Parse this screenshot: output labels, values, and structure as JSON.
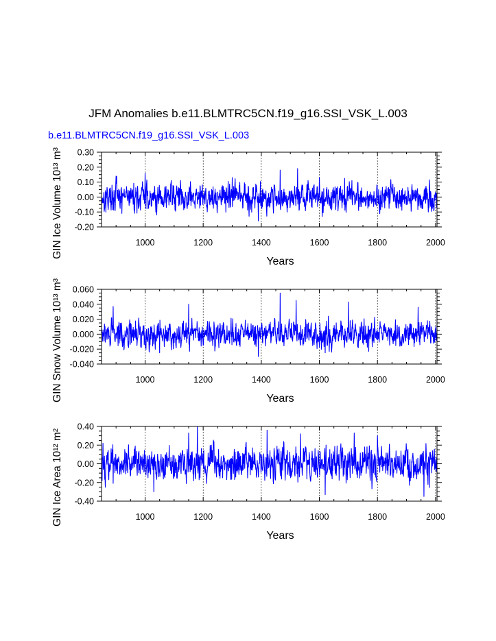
{
  "figure": {
    "title": "JFM Anomalies b.e11.BLMTRC5CN.f19_g16.SSI_VSK_L.003",
    "run_label": "b.e11.BLMTRC5CN.f19_g16.SSI_VSK_L.003",
    "line_color": "#0000ff"
  },
  "chart_data": [
    {
      "type": "line",
      "title": "",
      "xlabel": "Years",
      "ylabel": "GIN Ice Volume 10¹³ m³",
      "xlim": [
        850,
        2005
      ],
      "ylim": [
        -0.2,
        0.3
      ],
      "x_ticks": [
        1000,
        1200,
        1400,
        1600,
        1800,
        2000
      ],
      "y_ticks": [
        -0.2,
        -0.1,
        0.0,
        0.1,
        0.2,
        0.3
      ],
      "y_tick_labels": [
        "-0.20",
        "-0.10",
        "0.00",
        "0.10",
        "0.20",
        "0.30"
      ],
      "grid": "vertical dashed at major x ticks",
      "series": [
        {
          "name": "GIN Ice Volume",
          "start_year": 850,
          "end_year": 2005,
          "amplitude": 0.045,
          "seed": 17,
          "peaks": [
            [
              1525,
              0.19
            ],
            [
              1465,
              0.18
            ],
            [
              1000,
              0.16
            ],
            [
              900,
              0.14
            ],
            [
              1300,
              0.13
            ],
            [
              1600,
              0.13
            ]
          ],
          "troughs": [
            [
              1390,
              -0.16
            ],
            [
              1610,
              -0.13
            ],
            [
              1040,
              -0.12
            ],
            [
              920,
              -0.11
            ],
            [
              1975,
              -0.1
            ]
          ]
        }
      ]
    },
    {
      "type": "line",
      "title": "",
      "xlabel": "Years",
      "ylabel": "GIN Snow Volume 10¹³ m³",
      "xlim": [
        850,
        2005
      ],
      "ylim": [
        -0.04,
        0.06
      ],
      "x_ticks": [
        1000,
        1200,
        1400,
        1600,
        1800,
        2000
      ],
      "y_ticks": [
        -0.04,
        -0.02,
        0.0,
        0.02,
        0.04,
        0.06
      ],
      "y_tick_labels": [
        "-0.040",
        "-0.020",
        "0.000",
        "0.020",
        "0.040",
        "0.060"
      ],
      "grid": "vertical dashed at major x ticks",
      "series": [
        {
          "name": "GIN Snow Volume",
          "start_year": 850,
          "end_year": 2005,
          "amplitude": 0.0085,
          "seed": 29,
          "peaks": [
            [
              1465,
              0.055
            ],
            [
              1520,
              0.045
            ],
            [
              1700,
              0.043
            ],
            [
              1150,
              0.04
            ],
            [
              890,
              0.037
            ],
            [
              1940,
              0.036
            ]
          ],
          "troughs": [
            [
              1390,
              -0.03
            ],
            [
              1620,
              -0.025
            ],
            [
              1050,
              -0.025
            ],
            [
              1770,
              -0.023
            ]
          ]
        }
      ]
    },
    {
      "type": "line",
      "title": "",
      "xlabel": "Years",
      "ylabel": "GIN Ice Area 10¹² m²",
      "xlim": [
        850,
        2005
      ],
      "ylim": [
        -0.4,
        0.4
      ],
      "x_ticks": [
        1000,
        1200,
        1400,
        1600,
        1800,
        2000
      ],
      "y_ticks": [
        -0.4,
        -0.2,
        0.0,
        0.2,
        0.4
      ],
      "y_tick_labels": [
        "-0.40",
        "-0.20",
        "0.00",
        "0.20",
        "0.40"
      ],
      "grid": "vertical dashed at major x ticks",
      "series": [
        {
          "name": "GIN Ice Area",
          "start_year": 850,
          "end_year": 2005,
          "amplitude": 0.085,
          "seed": 43,
          "peaks": [
            [
              1180,
              0.4
            ],
            [
              1150,
              0.33
            ],
            [
              1420,
              0.36
            ],
            [
              1720,
              0.33
            ],
            [
              855,
              0.22
            ],
            [
              1535,
              0.32
            ],
            [
              1800,
              0.3
            ]
          ],
          "troughs": [
            [
              1960,
              -0.35
            ],
            [
              1030,
              -0.3
            ],
            [
              1620,
              -0.33
            ],
            [
              1910,
              -0.23
            ],
            [
              890,
              -0.21
            ]
          ]
        }
      ]
    }
  ]
}
